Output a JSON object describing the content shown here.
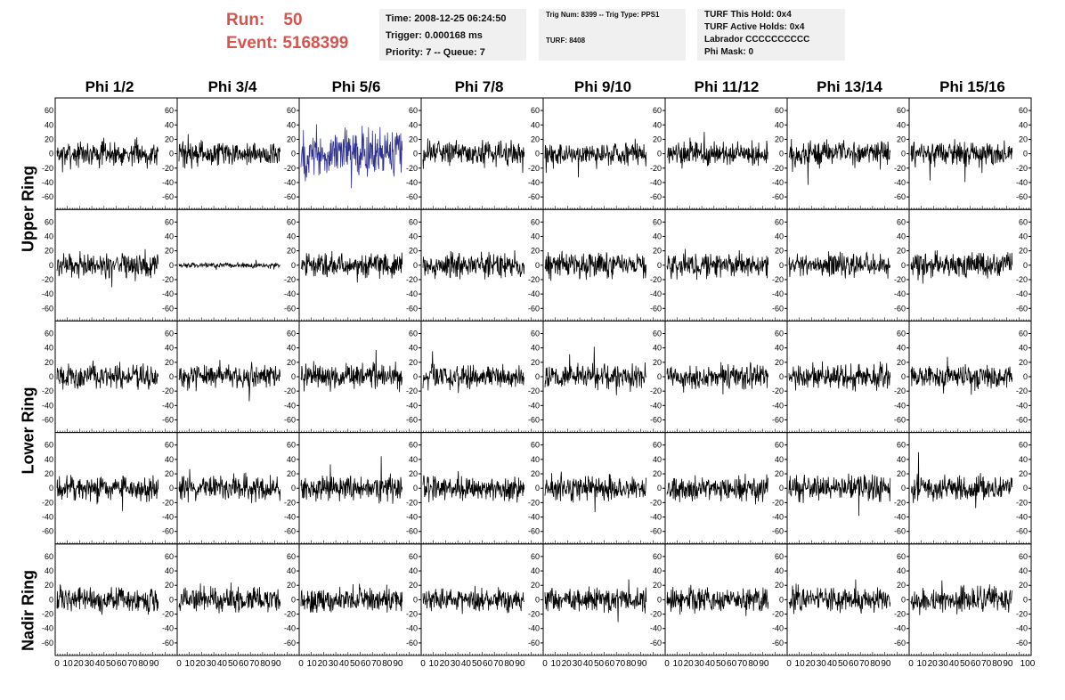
{
  "header": {
    "run_label": "Run:",
    "run_value": "50",
    "event_label": "Event:",
    "event_value": "5168399",
    "time": "Time: 2008-12-25 06:24:50",
    "trigger": "Trigger: 0.000168 ms",
    "priority": "Priority: 7 -- Queue: 7",
    "trig_num": "Trig Num: 8399 -- Trig Type: PPS1",
    "turf": "TURF: 8408",
    "turf_hold": "TURF This Hold: 0x4",
    "turf_active": "TURF Active Holds: 0x4",
    "labrador": "Labrador CCCCCCCCCC",
    "phi_mask": "Phi Mask: 0"
  },
  "columns": [
    "Phi 1/2",
    "Phi 3/4",
    "Phi 5/6",
    "Phi 7/8",
    "Phi 9/10",
    "Phi 11/12",
    "Phi 13/14",
    "Phi 15/16"
  ],
  "ring_labels": [
    {
      "label": "Upper Ring"
    },
    {
      "label": "Lower Ring"
    },
    {
      "label": "Nadir Ring"
    }
  ],
  "chart_data": {
    "type": "line",
    "rows": 5,
    "cols": 8,
    "xlim": [
      0,
      100
    ],
    "ylim": [
      -70,
      70
    ],
    "y_ticks": [
      -60,
      -40,
      -20,
      0,
      20,
      40,
      60
    ],
    "x_ticks": [
      0,
      10,
      20,
      30,
      40,
      50,
      60,
      70,
      80,
      90
    ],
    "x_tick_label_final": "100",
    "samples_per_trace": 256,
    "trace_color": "#000000",
    "highlight_color": "#2e3192",
    "highlight_panel": {
      "row": 0,
      "col": 2,
      "amplitude": 30
    },
    "flat_panel": {
      "row": 1,
      "col": 1,
      "amplitude": 3
    },
    "default_amplitude": 15
  }
}
